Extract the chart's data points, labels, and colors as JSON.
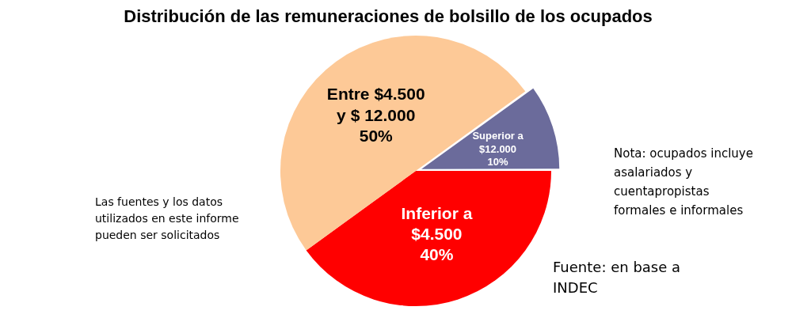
{
  "chart_data": {
    "type": "pie",
    "title": "Distribución de las remuneraciones de bolsillo de los ocupados",
    "categories": [
      "Inferior a\n$4.500",
      "Entre $4.500\ny $ 12.000",
      "Superior a\n$12.000"
    ],
    "values": [
      40,
      50,
      10
    ],
    "colors": [
      "#ff0000",
      "#fdc997",
      "#6b6b9b"
    ],
    "value_labels": [
      "40%",
      "50%",
      "10%"
    ],
    "legend": false,
    "annotations": [
      "Las fuentes y los datos utilizados en este informe pueden ser solicitados",
      "Nota: ocupados incluye asalariados y cuentapropistas formales e informales",
      "Fuente: en base a INDEC"
    ]
  }
}
